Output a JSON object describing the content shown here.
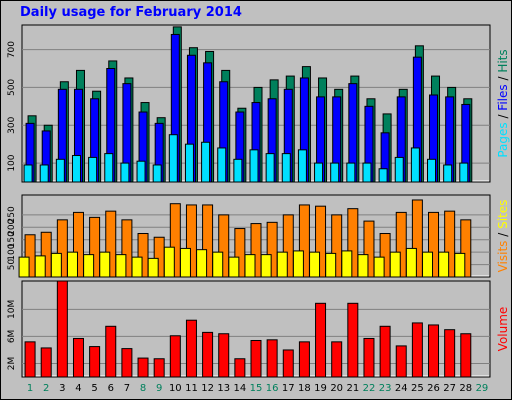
{
  "chart_data": {
    "type": "bar",
    "title": "Daily usage for February 2014",
    "x": [
      "1",
      "2",
      "3",
      "4",
      "5",
      "6",
      "7",
      "8",
      "9",
      "10",
      "11",
      "12",
      "13",
      "14",
      "15",
      "16",
      "17",
      "18",
      "19",
      "20",
      "21",
      "22",
      "23",
      "24",
      "25",
      "26",
      "27",
      "28",
      "29"
    ],
    "weekend_days": [
      "1",
      "2",
      "8",
      "9",
      "15",
      "16",
      "22",
      "23",
      "29"
    ],
    "colors": {
      "background": "#c0c0c0",
      "plot": "#ffffff",
      "hits": "#00805c",
      "files": "#0000ff",
      "pages": "#00e0ff",
      "sites": "#ffff00",
      "visits": "#ff8000",
      "volume": "#ff0000",
      "weekday_label": "#000000",
      "weekend_label": "#00805c"
    },
    "panels": [
      {
        "name": "hits-files-pages",
        "ylim": [
          0,
          830
        ],
        "yticks": [
          {
            "value": 100,
            "label": "100"
          },
          {
            "value": 300,
            "label": "300"
          },
          {
            "value": 500,
            "label": "500"
          },
          {
            "value": 700,
            "label": "700"
          }
        ],
        "legend": [
          {
            "text": "Pages",
            "color": "#00e0ff"
          },
          {
            "text": " / ",
            "color": "#000000"
          },
          {
            "text": "Files",
            "color": "#0000ff"
          },
          {
            "text": " / ",
            "color": "#000000"
          },
          {
            "text": "Hits",
            "color": "#00805c"
          }
        ],
        "series": [
          {
            "key": "hits",
            "color": "#00805c",
            "values": [
              350,
              300,
              530,
              590,
              480,
              640,
              550,
              420,
              340,
              820,
              710,
              690,
              590,
              390,
              500,
              540,
              560,
              610,
              550,
              490,
              560,
              440,
              360,
              490,
              720,
              560,
              500,
              440,
              0
            ]
          },
          {
            "key": "files",
            "color": "#0000ff",
            "values": [
              310,
              270,
              490,
              490,
              440,
              600,
              520,
              370,
              310,
              780,
              670,
              630,
              530,
              370,
              420,
              440,
              490,
              550,
              450,
              450,
              520,
              400,
              260,
              450,
              660,
              460,
              450,
              410,
              0
            ]
          },
          {
            "key": "pages",
            "color": "#00e0ff",
            "values": [
              90,
              90,
              120,
              140,
              130,
              150,
              100,
              110,
              90,
              250,
              200,
              210,
              180,
              120,
              170,
              150,
              150,
              170,
              100,
              100,
              100,
              100,
              70,
              130,
              180,
              120,
              90,
              100,
              0
            ]
          }
        ]
      },
      {
        "name": "visits-sites",
        "ylim": [
          0,
          330
        ],
        "yticks": [
          {
            "value": 50,
            "label": "50"
          },
          {
            "value": 100,
            "label": "100"
          },
          {
            "value": 150,
            "label": "150"
          },
          {
            "value": 200,
            "label": "200"
          },
          {
            "value": 250,
            "label": "250"
          }
        ],
        "legend": [
          {
            "text": "Visits",
            "color": "#ff8000"
          },
          {
            "text": " / ",
            "color": "#000000"
          },
          {
            "text": "Sites",
            "color": "#ffff00"
          }
        ],
        "series": [
          {
            "key": "visits",
            "color": "#ff8000",
            "values": [
              170,
              180,
              230,
              260,
              240,
              265,
              230,
              175,
              160,
              295,
              290,
              290,
              250,
              195,
              215,
              220,
              250,
              290,
              285,
              250,
              275,
              225,
              175,
              260,
              310,
              260,
              265,
              230,
              0
            ]
          },
          {
            "key": "sites",
            "color": "#ffff00",
            "values": [
              80,
              85,
              95,
              100,
              90,
              100,
              90,
              80,
              75,
              120,
              115,
              110,
              100,
              80,
              90,
              90,
              100,
              105,
              100,
              95,
              105,
              90,
              80,
              100,
              115,
              100,
              100,
              95,
              0
            ]
          }
        ]
      },
      {
        "name": "volume",
        "ylim": [
          0,
          14200000
        ],
        "yticks": [
          {
            "value": 2000000,
            "label": "2M"
          },
          {
            "value": 6000000,
            "label": "6M"
          },
          {
            "value": 10000000,
            "label": "10M"
          }
        ],
        "legend": [
          {
            "text": "Volume",
            "color": "#ff0000"
          }
        ],
        "series": [
          {
            "key": "volume",
            "color": "#ff0000",
            "values": [
              5200000,
              4300000,
              14200000,
              5700000,
              4500000,
              7500000,
              4200000,
              2800000,
              2700000,
              6100000,
              8400000,
              6600000,
              6400000,
              2700000,
              5400000,
              5500000,
              4000000,
              5200000,
              10900000,
              5200000,
              10900000,
              5700000,
              7500000,
              4600000,
              8000000,
              7700000,
              7000000,
              6400000,
              0
            ]
          }
        ]
      }
    ]
  }
}
